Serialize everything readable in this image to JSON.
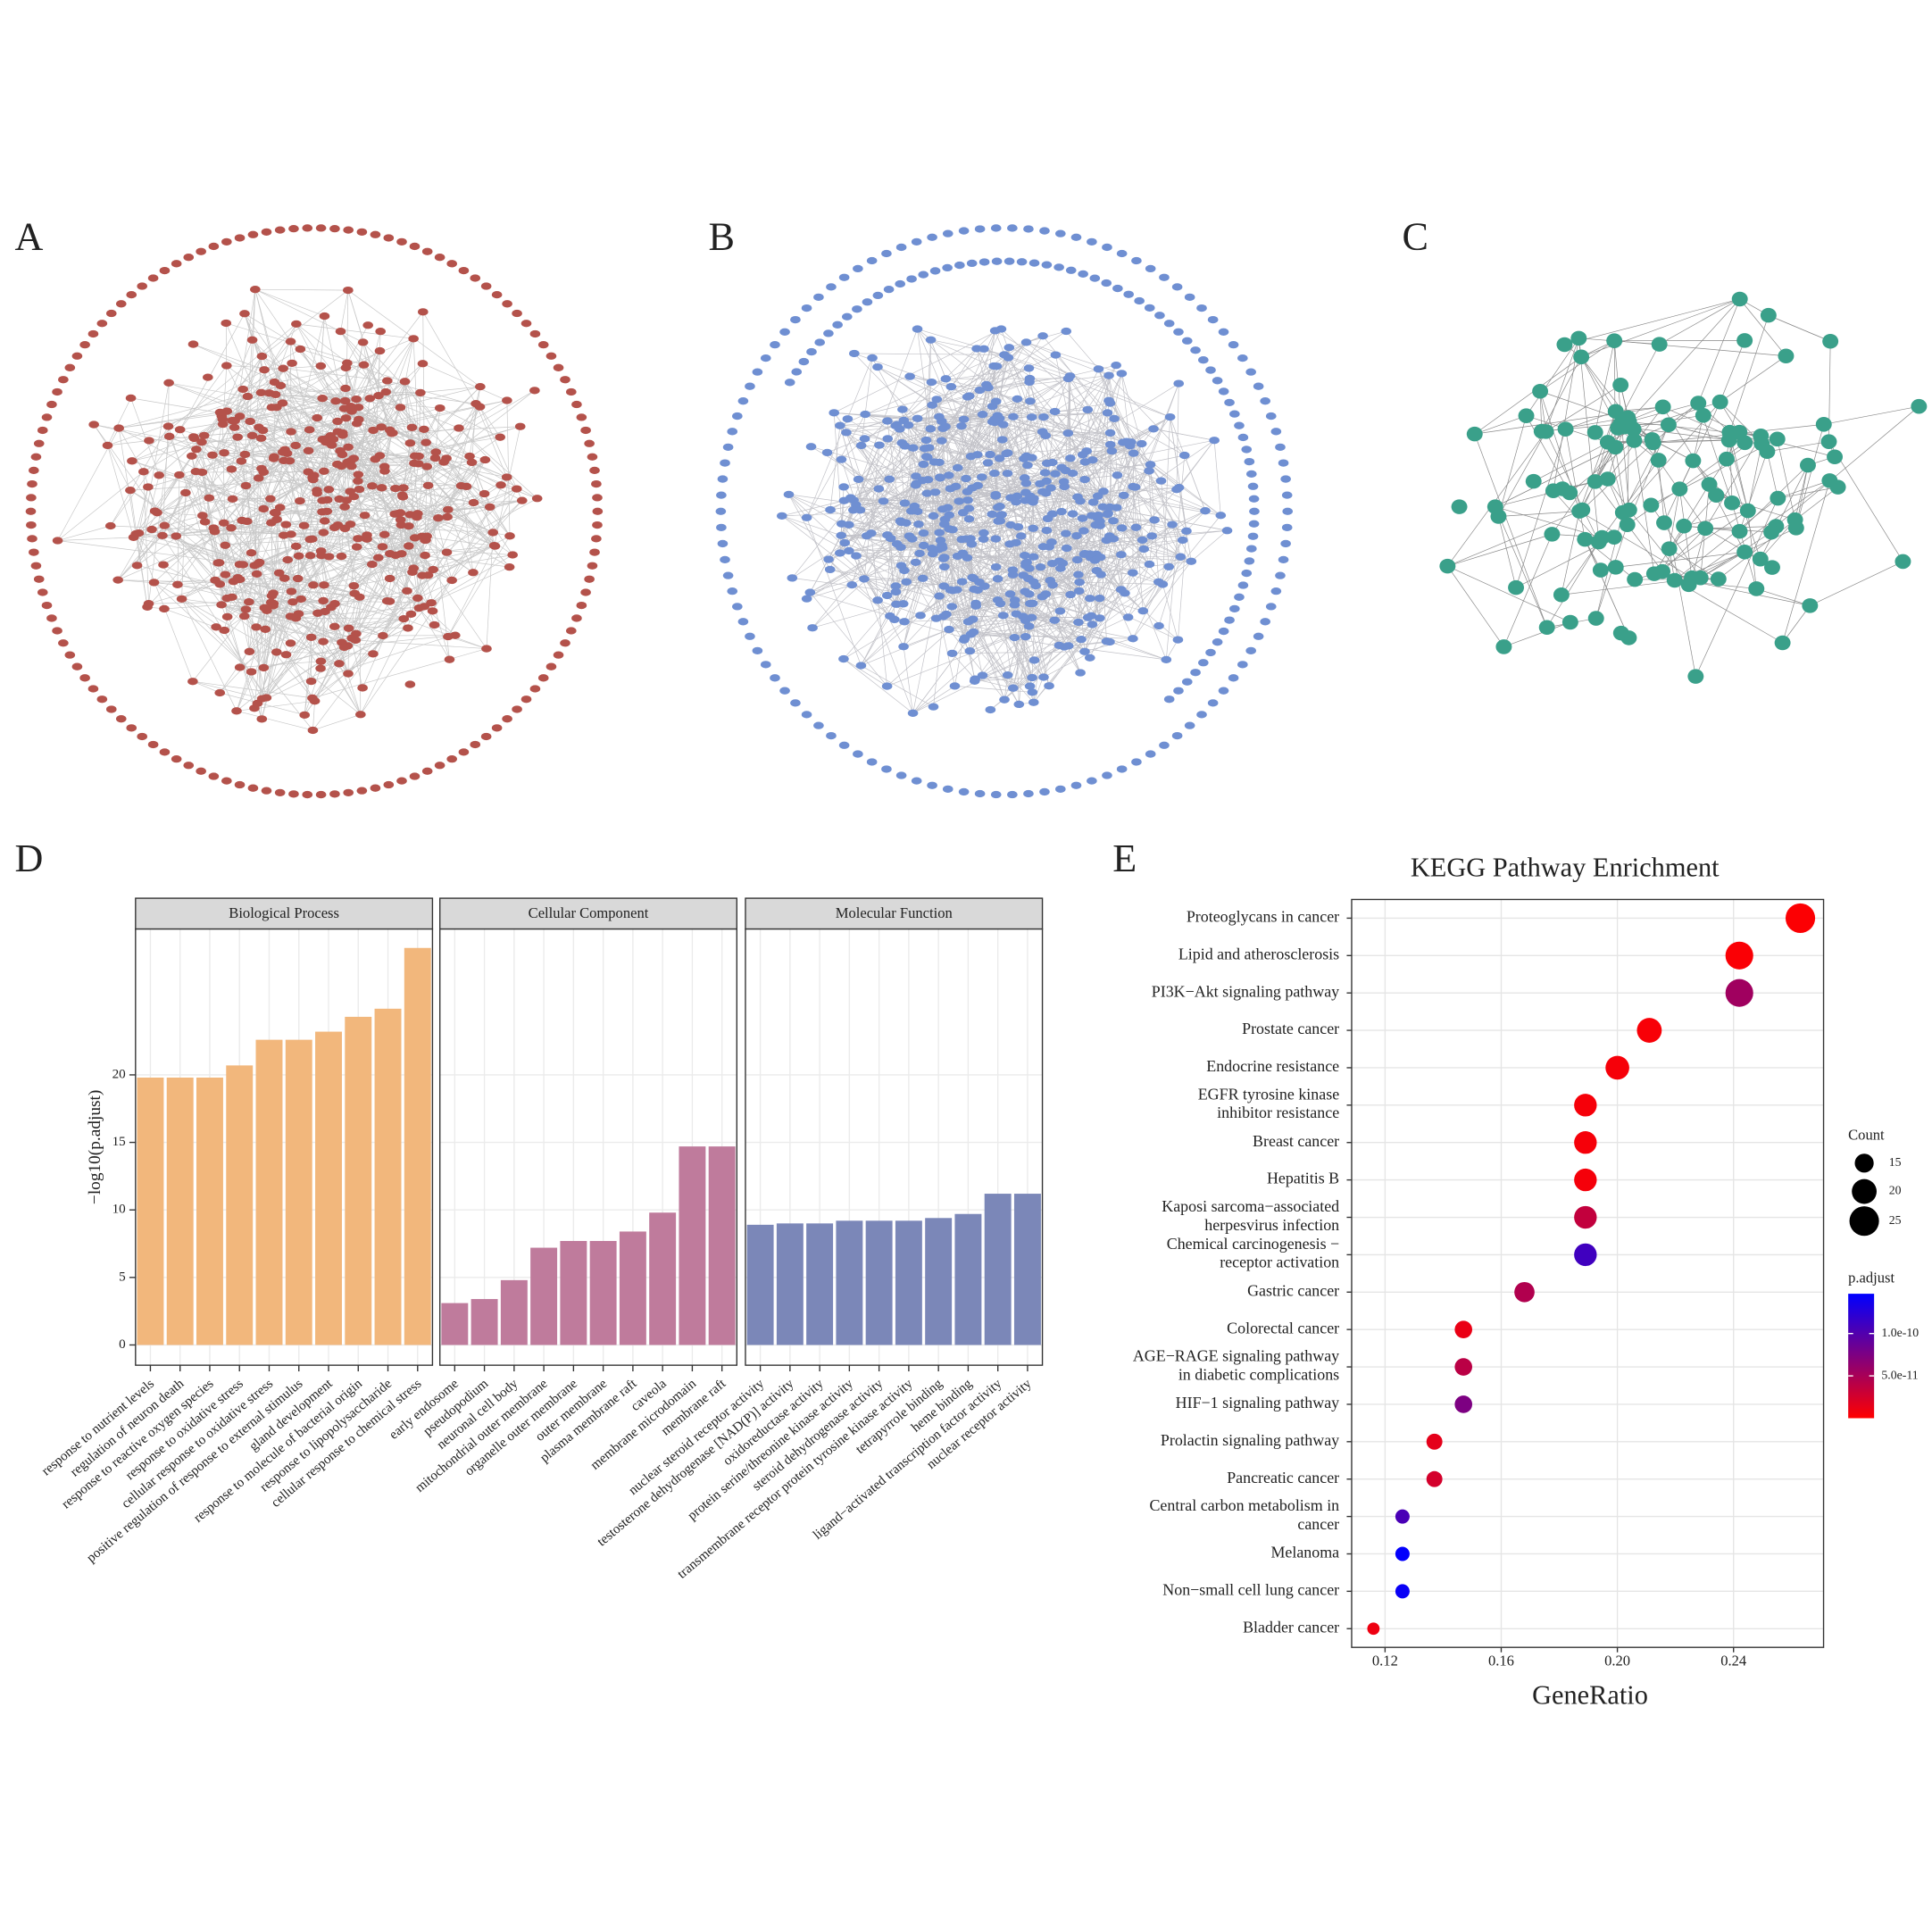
{
  "panel_labels": [
    "A",
    "B",
    "C",
    "D",
    "E"
  ],
  "chart_data": [
    {
      "type": "bar",
      "y_label": "−log10(p.adjust)",
      "ylim": [
        -1.5,
        30.8
      ],
      "yticks": [
        0,
        5,
        10,
        15,
        20
      ],
      "grid": true,
      "facets": [
        {
          "title": "Biological Process",
          "color": "#f2b77c",
          "categories": [
            "response to nutrient levels",
            "regulation of neuron death",
            "response to reactive oxygen species",
            "response to oxidative stress",
            "cellular response to oxidative stress",
            "positive regulation of response to external stimulus",
            "gland development",
            "response to molecule of bacterial origin",
            "response to lipopolysaccharide",
            "cellular response to chemical stress"
          ],
          "values": [
            19.8,
            19.8,
            19.8,
            20.7,
            22.6,
            22.6,
            23.2,
            24.3,
            24.9,
            29.4
          ]
        },
        {
          "title": "Cellular Component",
          "color": "#bf7b9c",
          "categories": [
            "early endosome",
            "pseudopodium",
            "neuronal cell body",
            "mitochondrial outer membrane",
            "organelle outer membrane",
            "outer membrane",
            "plasma membrane raft",
            "caveola",
            "membrane microdomain",
            "membrane raft"
          ],
          "values": [
            3.1,
            3.4,
            4.8,
            7.2,
            7.7,
            7.7,
            8.4,
            9.8,
            14.7,
            14.7
          ]
        },
        {
          "title": "Molecular Function",
          "color": "#7b87b8",
          "categories": [
            "nuclear steroid receptor activity",
            "testosterone dehydrogenase [NAD(P)] activity",
            "oxidoreductase activity",
            "protein serine/threonine kinase activity",
            "steroid dehydrogenase activity",
            "transmembrane receptor protein tyrosine kinase activity",
            "tetrapyrrole binding",
            "heme binding",
            "ligand−activated transcription factor activity",
            "nuclear receptor activity"
          ],
          "values": [
            8.9,
            9.0,
            9.0,
            9.2,
            9.2,
            9.2,
            9.4,
            9.7,
            11.2,
            11.2
          ]
        }
      ]
    },
    {
      "type": "scatter",
      "title": "KEGG Pathway Enrichment",
      "x_label": "GeneRatio",
      "categories": [
        "Proteoglycans in cancer",
        "Lipid and atherosclerosis",
        "PI3K−Akt signaling pathway",
        "Prostate cancer",
        "Endocrine resistance",
        "EGFR tyrosine kinase\ninhibitor resistance",
        "Breast cancer",
        "Hepatitis B",
        "Kaposi sarcoma−associated\nherpesvirus infection",
        "Chemical carcinogenesis −\nreceptor activation",
        "Gastric cancer",
        "Colorectal cancer",
        "AGE−RAGE signaling pathway\nin diabetic complications",
        "HIF−1 signaling pathway",
        "Prolactin signaling pathway",
        "Pancreatic cancer",
        "Central carbon metabolism in\ncancer",
        "Melanoma",
        "Non−small cell lung cancer",
        "Bladder cancer"
      ],
      "x": [
        0.263,
        0.242,
        0.242,
        0.211,
        0.2,
        0.189,
        0.189,
        0.189,
        0.189,
        0.189,
        0.168,
        0.147,
        0.147,
        0.147,
        0.137,
        0.137,
        0.126,
        0.126,
        0.126,
        0.116
      ],
      "sizes": [
        25,
        23,
        23,
        20,
        19,
        18,
        18,
        18,
        18,
        18,
        16,
        14,
        14,
        14,
        13,
        13,
        12,
        12,
        12,
        11
      ],
      "p_adjust": [
        2e-12,
        3e-12,
        5.5e-11,
        4e-12,
        5e-12,
        5e-12,
        5e-12,
        6e-12,
        3.5e-11,
        1.1e-10,
        4.5e-11,
        1.2e-11,
        4e-11,
        7.5e-11,
        1.5e-11,
        2.5e-11,
        1.05e-10,
        1.45e-10,
        1.42e-10,
        1e-11
      ],
      "xlim": [
        0.1085,
        0.271
      ],
      "xticks": [
        0.12,
        0.16,
        {
          "value": 0.2,
          "label": "0.20"
        },
        0.24
      ],
      "grid": true,
      "size_legend": {
        "title": "Count",
        "values": [
          15,
          20,
          25
        ]
      },
      "color_legend": {
        "title": "p.adjust",
        "clim": [
          0,
          1.47e-10
        ],
        "ticks": [
          {
            "value": 5e-11,
            "label": "5.0e-11"
          },
          {
            "value": 1e-10,
            "label": "1.0e-10"
          }
        ],
        "low_color": "#ff0000",
        "high_color": "#0000ff"
      }
    }
  ]
}
